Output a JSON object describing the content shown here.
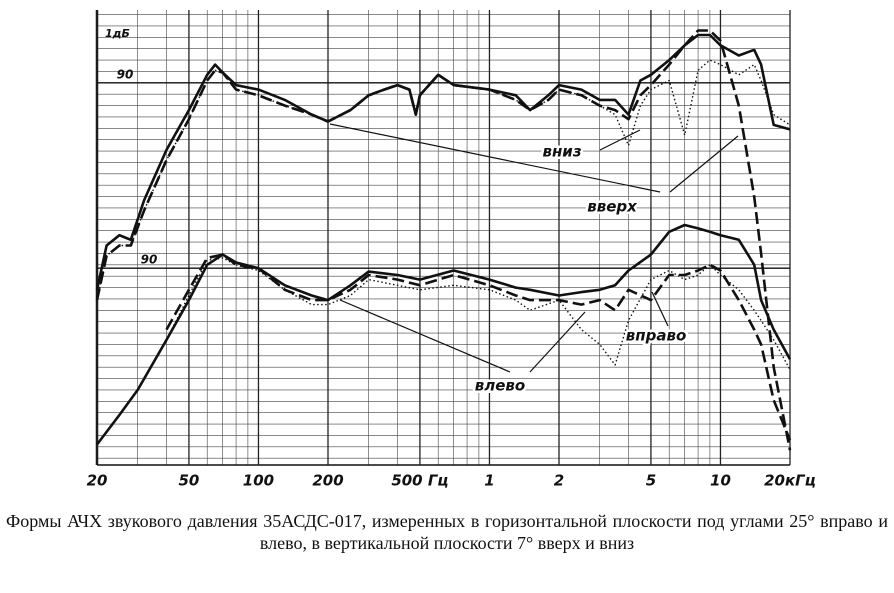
{
  "chart_data": [
    {
      "type": "line",
      "xscale": "log",
      "xlim": [
        20,
        20000
      ],
      "xticks": [
        20,
        50,
        100,
        200,
        {
          "value": 500,
          "label": "500 Гц"
        },
        {
          "value": 1000,
          "label": "1"
        },
        {
          "value": 2000,
          "label": "2"
        },
        {
          "value": 5000,
          "label": "5"
        },
        {
          "value": 10000,
          "label": "10"
        },
        {
          "value": 20000,
          "label": "20кГц"
        }
      ],
      "ylim": [
        56.4,
        96.4
      ],
      "yticks": [
        90
      ],
      "grid": true,
      "annotations": [
        "1дБ"
      ],
      "x": [
        20,
        22,
        25,
        28,
        32,
        40,
        50,
        60,
        65,
        70,
        80,
        100,
        130,
        170,
        200,
        250,
        300,
        350,
        400,
        450,
        480,
        500,
        600,
        700,
        1000,
        1300,
        1500,
        1800,
        2000,
        2500,
        3000,
        3500,
        4000,
        4500,
        5000,
        6000,
        7000,
        8000,
        9000,
        10000,
        12000,
        14000,
        15000,
        17000,
        20000
      ],
      "series": [
        {
          "color": "#111111",
          "dash": "solid",
          "values": [
            71.8,
            75.7,
            76.6,
            76.2,
            79.7,
            84.1,
            87.6,
            90.7,
            91.6,
            90.9,
            89.8,
            89.4,
            88.5,
            87.2,
            86.6,
            87.6,
            88.9,
            89.4,
            89.8,
            89.4,
            87.2,
            88.9,
            90.7,
            89.8,
            89.4,
            88.9,
            87.6,
            88.9,
            89.8,
            89.4,
            88.5,
            88.5,
            87.2,
            90.2,
            90.7,
            92.0,
            93.3,
            94.2,
            94.2,
            93.3,
            92.4,
            92.9,
            91.6,
            86.3,
            85.9
          ]
        },
        {
          "name": "вверх",
          "color": "#111111",
          "dash": "dashed",
          "values": [
            70.9,
            74.8,
            75.7,
            75.7,
            78.8,
            83.2,
            86.8,
            90.2,
            91.1,
            90.9,
            89.4,
            88.9,
            88.0,
            87.2,
            86.6,
            87.6,
            88.9,
            89.4,
            89.8,
            89.4,
            87.2,
            88.9,
            90.7,
            89.8,
            89.4,
            88.5,
            87.6,
            88.5,
            89.4,
            88.9,
            88.0,
            87.6,
            86.8,
            88.9,
            89.8,
            91.6,
            93.3,
            94.6,
            94.6,
            93.7,
            88.0,
            80,
            75,
            65,
            57.7
          ]
        },
        {
          "name": "вниз",
          "color": "#111111",
          "dash": "dotted",
          "values": [
            70.9,
            74.8,
            75.7,
            75.7,
            78.8,
            83.2,
            86.8,
            90.2,
            91.1,
            90.9,
            89.4,
            88.9,
            88.0,
            87.2,
            86.6,
            87.6,
            88.9,
            89.4,
            89.8,
            89.4,
            87.2,
            88.9,
            90.7,
            89.8,
            89.4,
            88.5,
            87.6,
            88.5,
            89.4,
            88.9,
            88.0,
            87.2,
            84.5,
            88.0,
            89.4,
            90.2,
            85.4,
            91.1,
            92.0,
            91.6,
            90.7,
            91.6,
            90.2,
            87.2,
            86.3
          ]
        }
      ]
    },
    {
      "type": "line",
      "xscale": "log",
      "xlim": [
        20,
        20000
      ],
      "ylim": [
        72.7,
        112.7
      ],
      "yticks": [
        90
      ],
      "x": [
        20,
        25,
        30,
        40,
        50,
        60,
        70,
        80,
        100,
        130,
        170,
        200,
        250,
        300,
        400,
        500,
        700,
        1000,
        1300,
        1500,
        2000,
        2500,
        3000,
        3500,
        4000,
        5000,
        6000,
        7000,
        8000,
        9000,
        10000,
        12000,
        14000,
        15000,
        17000,
        20000
      ],
      "series": [
        {
          "color": "#111111",
          "dash": "solid",
          "values": [
            74.5,
            77.1,
            79.3,
            83.7,
            87.2,
            90.3,
            91.2,
            90.5,
            90.0,
            88.5,
            87.6,
            87.2,
            88.5,
            89.7,
            89.4,
            89.0,
            89.8,
            89.0,
            88.3,
            88.1,
            87.6,
            87.9,
            88.1,
            88.5,
            89.8,
            91.2,
            93.2,
            93.8,
            93.5,
            93.2,
            92.9,
            92.5,
            90.3,
            87.2,
            84.6,
            82.0
          ]
        },
        {
          "name": "вправо",
          "color": "#111111",
          "dash": "dashed",
          "values": [
            null,
            null,
            null,
            84.6,
            88.1,
            90.9,
            91.2,
            90.3,
            90.0,
            88.1,
            87.2,
            87.2,
            88.1,
            89.4,
            89.0,
            88.5,
            89.4,
            88.5,
            87.6,
            87.2,
            87.2,
            86.8,
            87.2,
            86.3,
            88.1,
            87.2,
            89.4,
            89.4,
            89.8,
            90.3,
            89.8,
            87.2,
            84.6,
            83.3,
            78.4,
            74.9
          ]
        },
        {
          "name": "влево",
          "color": "#111111",
          "dash": "dotted",
          "values": [
            null,
            null,
            null,
            83.7,
            87.6,
            90.7,
            90.9,
            90.3,
            89.8,
            88.1,
            86.8,
            86.8,
            87.6,
            89.0,
            88.5,
            88.1,
            88.5,
            88.1,
            87.2,
            86.3,
            87.2,
            84.6,
            83.3,
            81.5,
            85.4,
            89.0,
            89.8,
            89.0,
            89.4,
            90.3,
            89.4,
            88.1,
            86.3,
            85.4,
            83.7,
            81.1
          ]
        }
      ]
    }
  ],
  "caption": "Формы АЧХ звукового давления 35АСДС-017, измеренных в горизонтальной плоскости под углами 25° вправо и влево, в вертикальной плоскости 7° вверх и вниз"
}
